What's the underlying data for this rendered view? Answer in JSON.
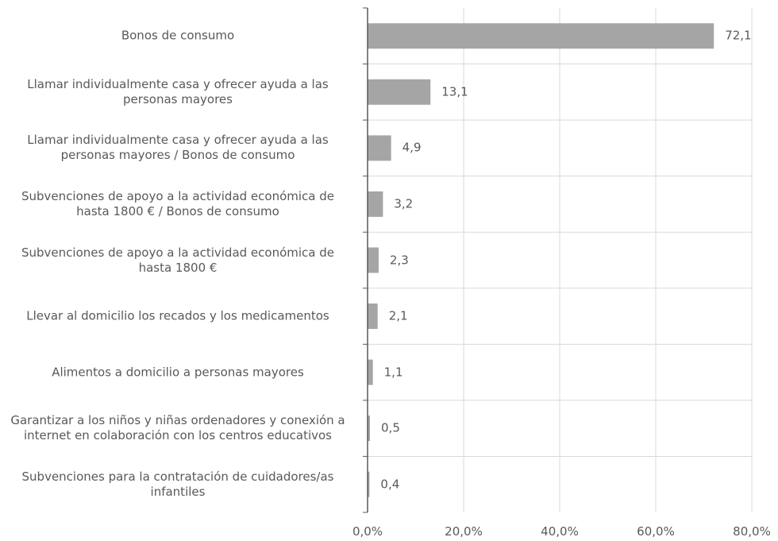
{
  "chart_data": {
    "type": "bar",
    "orientation": "horizontal",
    "categories": [
      "Bonos de consumo",
      "Llamar individualmente casa y ofrecer ayuda a las personas mayores",
      "Llamar individualmente casa y ofrecer ayuda a las personas mayores / Bonos de consumo",
      "Subvenciones de apoyo a la actividad económica de hasta 1800 € / Bonos de consumo",
      "Subvenciones de apoyo a la actividad económica de hasta 1800 €",
      "Llevar al domicilio los recados y los medicamentos",
      "Alimentos a domicilio a personas mayores",
      "Garantizar a los niños y niñas ordenadores y conexión a internet en colaboración con los centros educativos",
      "Subvenciones para la contratación de cuidadores/as infantiles"
    ],
    "values": [
      72.1,
      13.1,
      4.9,
      3.2,
      2.3,
      2.1,
      1.1,
      0.5,
      0.4
    ],
    "value_labels": [
      "72,1",
      "13,1",
      "4,9",
      "3,2",
      "2,3",
      "2,1",
      "1,1",
      "0,5",
      "0,4"
    ],
    "color": "#a5a5a5",
    "xlim": [
      0,
      80
    ],
    "xticks": [
      {
        "value": 0,
        "label": "0,0%"
      },
      {
        "value": 20,
        "label": "20,0%"
      },
      {
        "value": 40,
        "label": "40,0%"
      },
      {
        "value": 60,
        "label": "60,0%"
      },
      {
        "value": 80,
        "label": "80,0%"
      }
    ],
    "grid": true
  }
}
